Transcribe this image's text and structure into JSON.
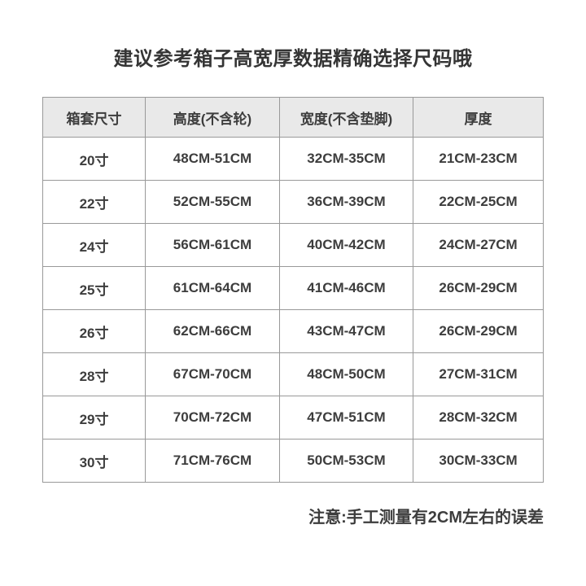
{
  "page": {
    "title": "建议参考箱子高宽厚数据精确选择尺码哦",
    "note": "注意:手工测量有2CM左右的误差"
  },
  "table": {
    "headers": [
      "箱套尺寸",
      "高度(不含轮)",
      "宽度(不含垫脚)",
      "厚度"
    ],
    "rows": [
      [
        "20寸",
        "48CM-51CM",
        "32CM-35CM",
        "21CM-23CM"
      ],
      [
        "22寸",
        "52CM-55CM",
        "36CM-39CM",
        "22CM-25CM"
      ],
      [
        "24寸",
        "56CM-61CM",
        "40CM-42CM",
        "24CM-27CM"
      ],
      [
        "25寸",
        "61CM-64CM",
        "41CM-46CM",
        "26CM-29CM"
      ],
      [
        "26寸",
        "62CM-66CM",
        "43CM-47CM",
        "26CM-29CM"
      ],
      [
        "28寸",
        "67CM-70CM",
        "48CM-50CM",
        "27CM-31CM"
      ],
      [
        "29寸",
        "70CM-72CM",
        "47CM-51CM",
        "28CM-32CM"
      ],
      [
        "30寸",
        "71CM-76CM",
        "50CM-53CM",
        "30CM-33CM"
      ]
    ]
  },
  "colors": {
    "background": "#ffffff",
    "header_bg": "#e9e9e9",
    "border": "#999999",
    "text": "#3d3d3d",
    "title_text": "#353535"
  },
  "chart_data": {
    "type": "table",
    "title": "建议参考箱子高宽厚数据精确选择尺码哦",
    "columns": [
      "箱套尺寸",
      "高度(不含轮)",
      "宽度(不含垫脚)",
      "厚度"
    ],
    "rows": [
      [
        "20寸",
        "48CM-51CM",
        "32CM-35CM",
        "21CM-23CM"
      ],
      [
        "22寸",
        "52CM-55CM",
        "36CM-39CM",
        "22CM-25CM"
      ],
      [
        "24寸",
        "56CM-61CM",
        "40CM-42CM",
        "24CM-27CM"
      ],
      [
        "25寸",
        "61CM-64CM",
        "41CM-46CM",
        "26CM-29CM"
      ],
      [
        "26寸",
        "62CM-66CM",
        "43CM-47CM",
        "26CM-29CM"
      ],
      [
        "28寸",
        "67CM-70CM",
        "48CM-50CM",
        "27CM-31CM"
      ],
      [
        "29寸",
        "70CM-72CM",
        "47CM-51CM",
        "28CM-32CM"
      ],
      [
        "30寸",
        "71CM-76CM",
        "50CM-53CM",
        "30CM-33CM"
      ]
    ],
    "note": "注意:手工测量有2CM左右的误差",
    "layout_hints": {
      "header_background": "#e9e9e9",
      "grid": "on",
      "note_position": "bottom-right"
    }
  }
}
